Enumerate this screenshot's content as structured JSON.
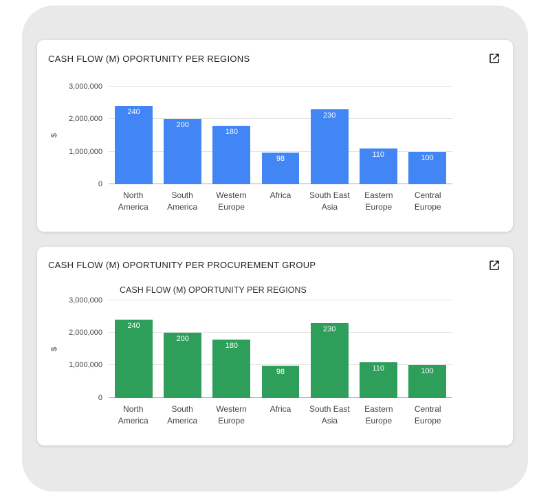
{
  "page": {
    "background": "#ffffff",
    "frame_color": "#e9e9e9"
  },
  "cards": [
    {
      "title": "CASH FLOW (M) OPORTUNITY PER REGIONS",
      "expand_icon": "open-in-new-icon"
    },
    {
      "title": "CASH FLOW (M) OPORTUNITY PER PROCUREMENT GROUP",
      "expand_icon": "open-in-new-icon",
      "inner_chart_title": "CASH FLOW (M) OPORTUNITY PER REGIONS"
    }
  ],
  "chart_data": [
    {
      "type": "bar",
      "title": "CASH FLOW (M) OPORTUNITY PER REGIONS",
      "categories": [
        "North America",
        "South America",
        "Western Europe",
        "Africa",
        "South East Asia",
        "Eastern Europe",
        "Central Europe"
      ],
      "category_lines": [
        [
          "North",
          "America"
        ],
        [
          "South",
          "America"
        ],
        [
          "Western",
          "Europe"
        ],
        [
          "Africa"
        ],
        [
          "South East",
          "Asia"
        ],
        [
          "Eastern",
          "Europe"
        ],
        [
          "Central",
          "Europe"
        ]
      ],
      "values": [
        2400000,
        2000000,
        1800000,
        980000,
        2300000,
        1100000,
        1000000
      ],
      "bar_labels": [
        "240",
        "200",
        "180",
        "98",
        "230",
        "110",
        "100"
      ],
      "bar_color": "#4285f4",
      "ylabel": "$",
      "xlabel": "",
      "ylim": [
        0,
        3000000
      ],
      "yticks": [
        {
          "label": "0",
          "value": 0
        },
        {
          "label": "1,000,000",
          "value": 1000000
        },
        {
          "label": "2,000,000",
          "value": 2000000
        },
        {
          "label": "3,000,000",
          "value": 3000000
        }
      ],
      "grid": true,
      "legend": "none"
    },
    {
      "type": "bar",
      "title": "CASH FLOW (M) OPORTUNITY PER PROCUREMENT GROUP",
      "chart_inner_title": "CASH FLOW (M) OPORTUNITY PER REGIONS",
      "categories": [
        "North America",
        "South America",
        "Western Europe",
        "Africa",
        "South East Asia",
        "Eastern Europe",
        "Central Europe"
      ],
      "category_lines": [
        [
          "North",
          "America"
        ],
        [
          "South",
          "America"
        ],
        [
          "Western",
          "Europe"
        ],
        [
          "Africa"
        ],
        [
          "South East",
          "Asia"
        ],
        [
          "Eastern",
          "Europe"
        ],
        [
          "Central",
          "Europe"
        ]
      ],
      "values": [
        2400000,
        2000000,
        1800000,
        980000,
        2300000,
        1100000,
        1000000
      ],
      "bar_labels": [
        "240",
        "200",
        "180",
        "98",
        "230",
        "110",
        "100"
      ],
      "bar_color": "#2e9e5b",
      "ylabel": "$",
      "xlabel": "",
      "ylim": [
        0,
        3000000
      ],
      "yticks": [
        {
          "label": "0",
          "value": 0
        },
        {
          "label": "1,000,000",
          "value": 1000000
        },
        {
          "label": "2,000,000",
          "value": 2000000
        },
        {
          "label": "3,000,000",
          "value": 3000000
        }
      ],
      "grid": true,
      "legend": "none"
    }
  ]
}
